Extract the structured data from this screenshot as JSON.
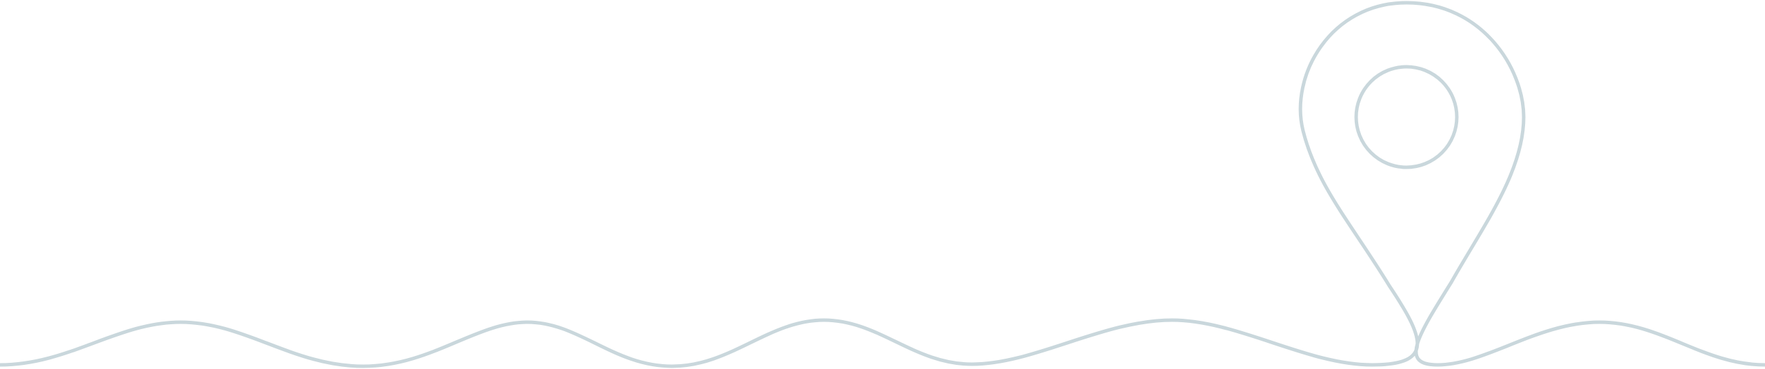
{
  "illustration": {
    "description_icon": "map-pin-icon",
    "stroke_color": "#c9d7dc",
    "background_color": "#ffffff"
  }
}
